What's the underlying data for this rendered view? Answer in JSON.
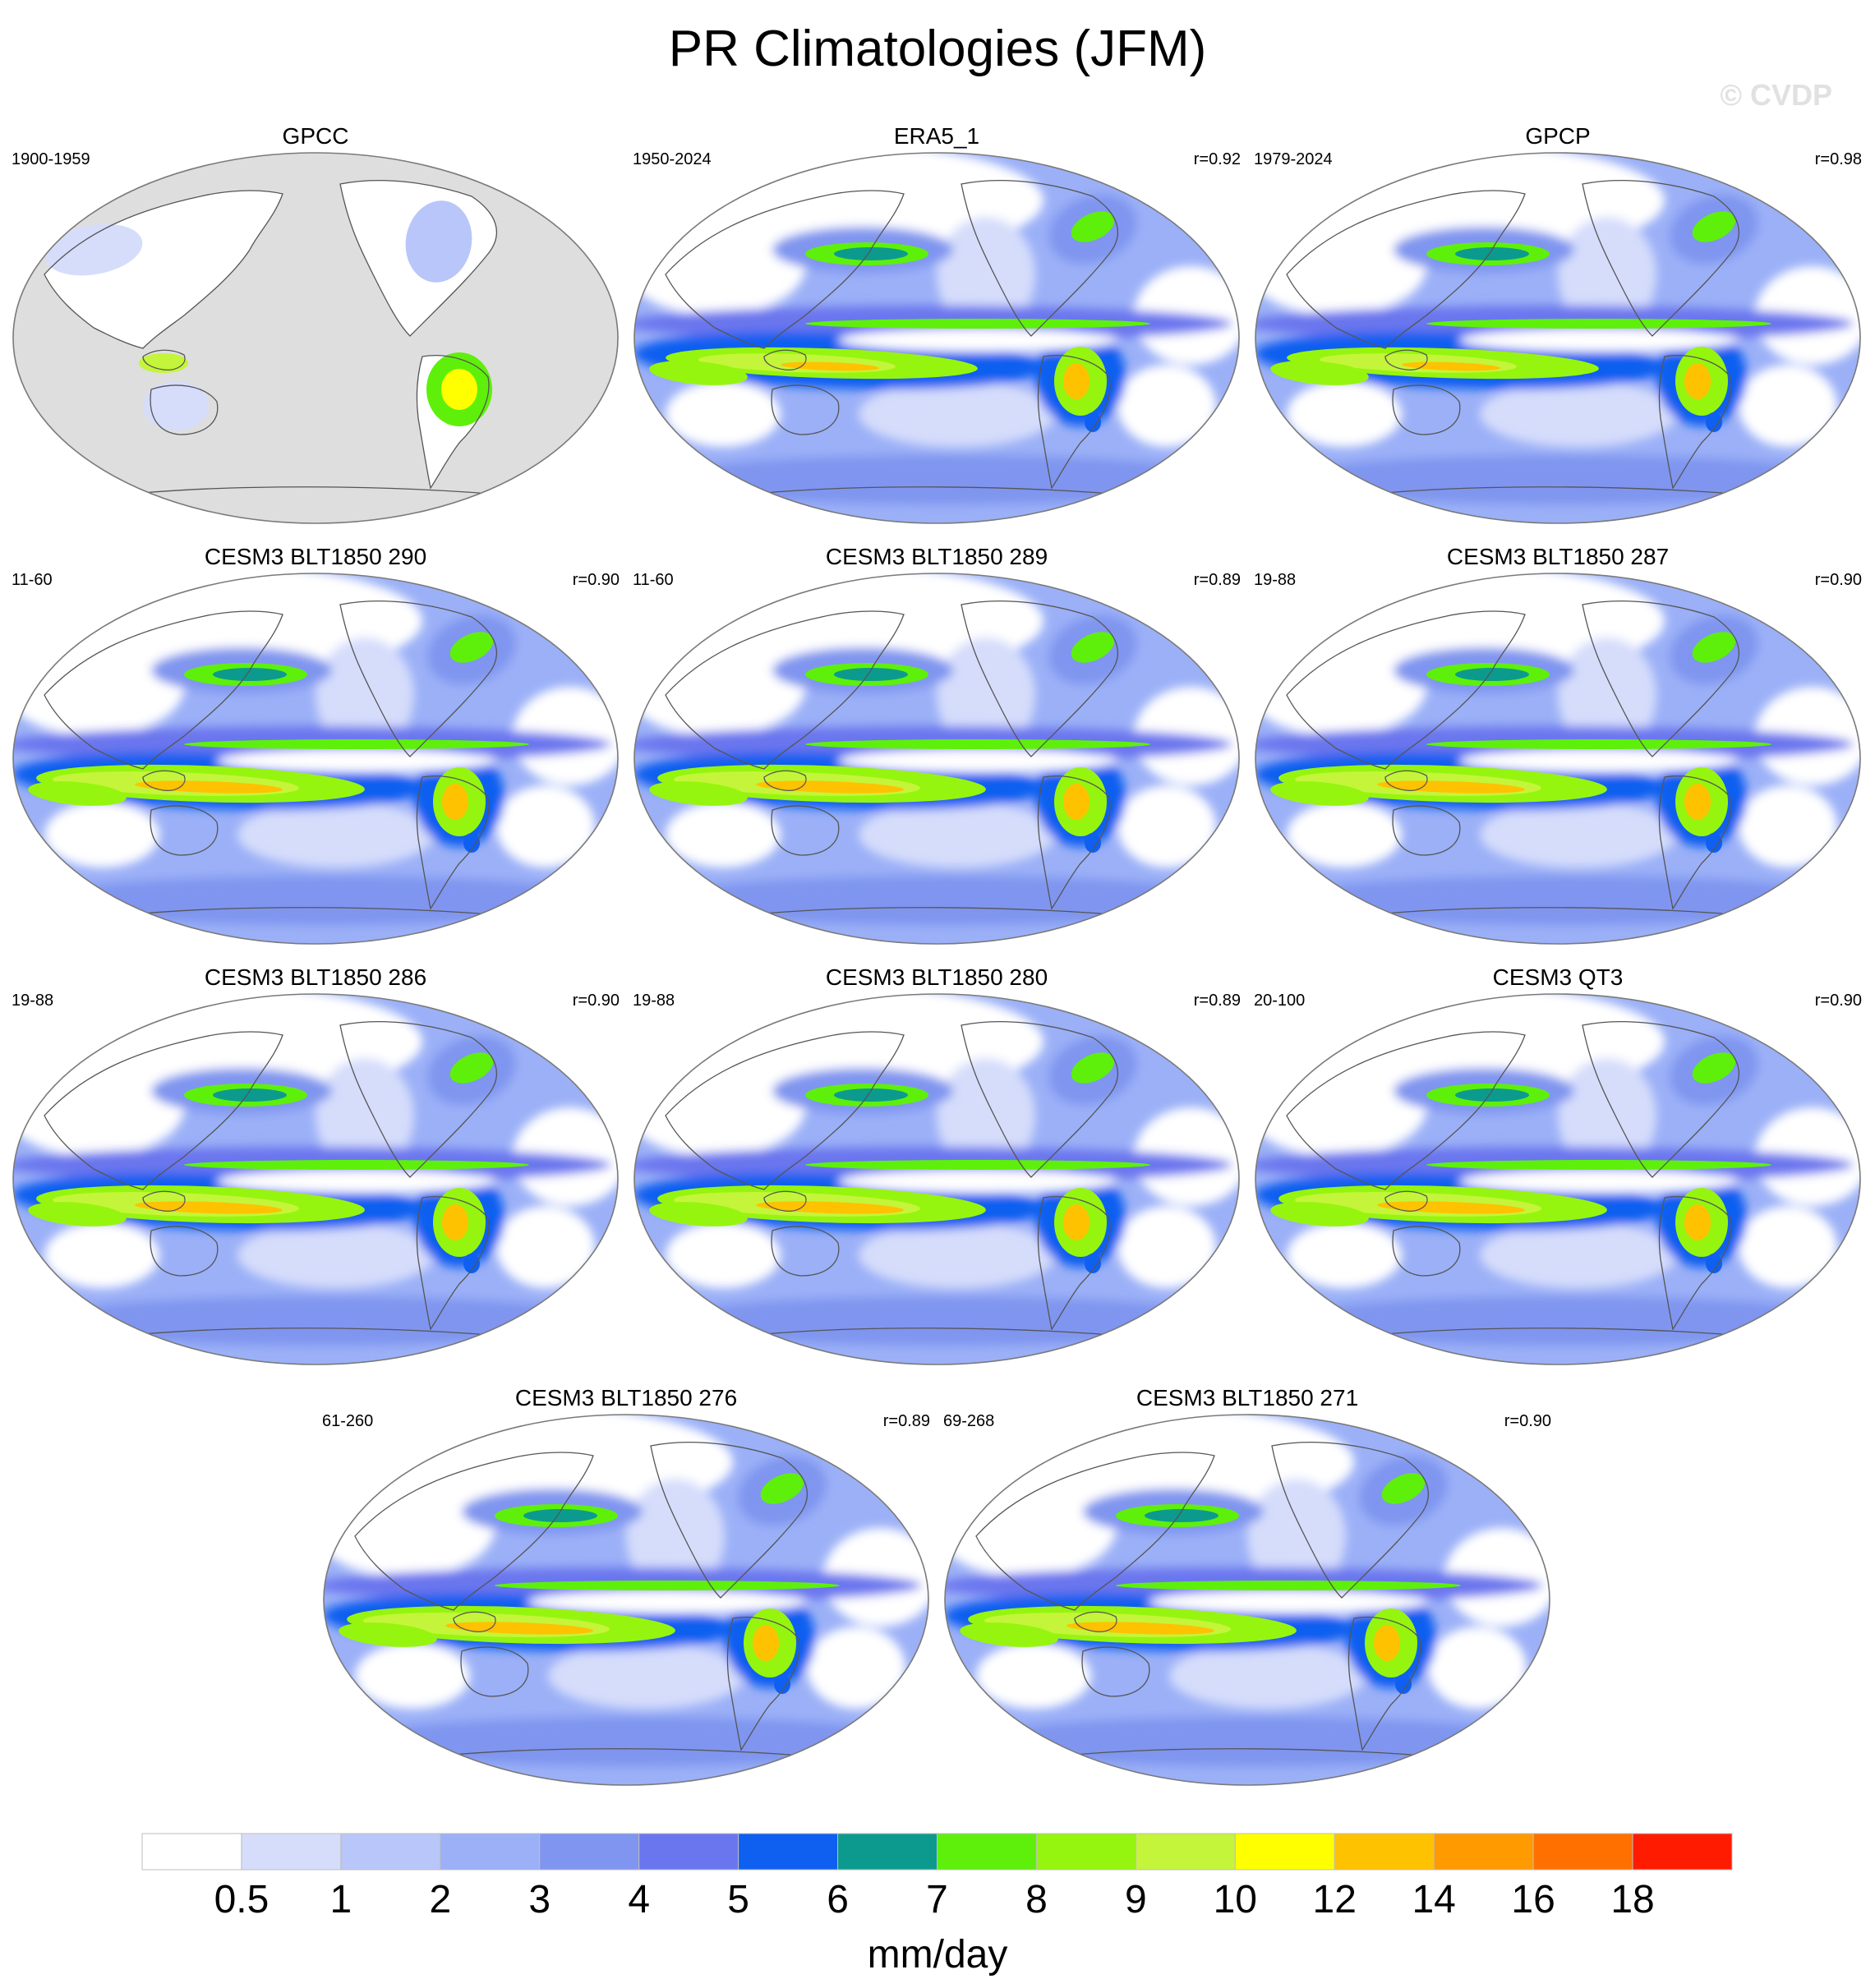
{
  "title": "PR Climatologies (JFM)",
  "watermark": "© CVDP",
  "panels": [
    {
      "title": "GPCC",
      "period": "1900-1959",
      "corr": "",
      "type": "obs-land"
    },
    {
      "title": "ERA5_1",
      "period": "1950-2024",
      "corr": "r=0.92",
      "type": "obs"
    },
    {
      "title": "GPCP",
      "period": "1979-2024",
      "corr": "r=0.98",
      "type": "obs"
    },
    {
      "title": "CESM3 BLT1850 290",
      "period": "11-60",
      "corr": "r=0.90",
      "type": "model"
    },
    {
      "title": "CESM3 BLT1850 289",
      "period": "11-60",
      "corr": "r=0.89",
      "type": "model"
    },
    {
      "title": "CESM3 BLT1850 287",
      "period": "19-88",
      "corr": "r=0.90",
      "type": "model"
    },
    {
      "title": "CESM3 BLT1850 286",
      "period": "19-88",
      "corr": "r=0.90",
      "type": "model"
    },
    {
      "title": "CESM3 BLT1850 280",
      "period": "19-88",
      "corr": "r=0.89",
      "type": "model"
    },
    {
      "title": "CESM3 QT3",
      "period": "20-100",
      "corr": "r=0.90",
      "type": "model"
    },
    {
      "title": "CESM3 BLT1850 276",
      "period": "61-260",
      "corr": "r=0.89",
      "type": "model"
    },
    {
      "title": "CESM3 BLT1850 271",
      "period": "69-268",
      "corr": "r=0.90",
      "type": "model"
    }
  ],
  "colorbar": {
    "unit": "mm/day",
    "levels": [
      "0.5",
      "1",
      "2",
      "3",
      "4",
      "5",
      "6",
      "7",
      "8",
      "9",
      "10",
      "12",
      "14",
      "16",
      "18"
    ],
    "colors": [
      "#ffffff",
      "#d6ddfb",
      "#b9c6f9",
      "#9bb0f7",
      "#7f95ef",
      "#6a76ee",
      "#0f5ff0",
      "#0c9a8f",
      "#5ef00a",
      "#96f50e",
      "#c4f53a",
      "#ffff00",
      "#ffc200",
      "#ff9a00",
      "#ff7000",
      "#ff1b00"
    ]
  },
  "map_colors": {
    "missing": "#dedede",
    "land_line": "#555555"
  }
}
